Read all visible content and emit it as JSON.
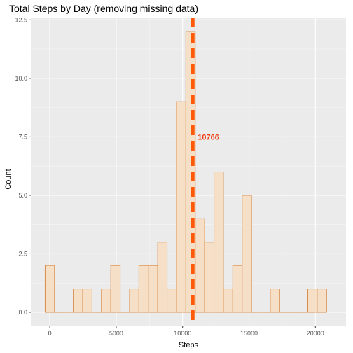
{
  "chart_data": {
    "type": "bar",
    "title": "Total Steps by Day (removing missing data)",
    "xlabel": "Steps",
    "ylabel": "Count",
    "bin_width": 706.5,
    "bins": [
      {
        "start": -353.25,
        "end": 353.25,
        "count": 2
      },
      {
        "start": 353.25,
        "end": 1059.75,
        "count": 0
      },
      {
        "start": 1059.75,
        "end": 1766.25,
        "count": 0
      },
      {
        "start": 1766.25,
        "end": 2472.75,
        "count": 1
      },
      {
        "start": 2472.75,
        "end": 3179.25,
        "count": 1
      },
      {
        "start": 3179.25,
        "end": 3885.75,
        "count": 0
      },
      {
        "start": 3885.75,
        "end": 4592.25,
        "count": 1
      },
      {
        "start": 4592.25,
        "end": 5298.75,
        "count": 2
      },
      {
        "start": 5298.75,
        "end": 6005.25,
        "count": 0
      },
      {
        "start": 6005.25,
        "end": 6711.75,
        "count": 1
      },
      {
        "start": 6711.75,
        "end": 7418.25,
        "count": 2
      },
      {
        "start": 7418.25,
        "end": 8124.75,
        "count": 2
      },
      {
        "start": 8124.75,
        "end": 8831.25,
        "count": 3
      },
      {
        "start": 8831.25,
        "end": 9537.75,
        "count": 1
      },
      {
        "start": 9537.75,
        "end": 10244.25,
        "count": 9
      },
      {
        "start": 10244.25,
        "end": 10950.75,
        "count": 12
      },
      {
        "start": 10950.75,
        "end": 11657.25,
        "count": 4
      },
      {
        "start": 11657.25,
        "end": 12363.75,
        "count": 3
      },
      {
        "start": 12363.75,
        "end": 13070.25,
        "count": 6
      },
      {
        "start": 13070.25,
        "end": 13776.75,
        "count": 1
      },
      {
        "start": 13776.75,
        "end": 14483.25,
        "count": 2
      },
      {
        "start": 14483.25,
        "end": 15189.75,
        "count": 5
      },
      {
        "start": 15189.75,
        "end": 15896.25,
        "count": 0
      },
      {
        "start": 15896.25,
        "end": 16602.75,
        "count": 0
      },
      {
        "start": 16602.75,
        "end": 17309.25,
        "count": 1
      },
      {
        "start": 17309.25,
        "end": 18015.75,
        "count": 0
      },
      {
        "start": 18015.75,
        "end": 18722.25,
        "count": 0
      },
      {
        "start": 18722.25,
        "end": 19428.75,
        "count": 0
      },
      {
        "start": 19428.75,
        "end": 20135.25,
        "count": 1
      },
      {
        "start": 20135.25,
        "end": 20841.75,
        "count": 1
      }
    ],
    "xlim": [
      -1431,
      22305
    ],
    "ylim": [
      -0.6,
      12.6
    ],
    "x_ticks": [
      0,
      5000,
      10000,
      15000,
      20000
    ],
    "y_ticks": [
      0.0,
      2.5,
      5.0,
      7.5,
      10.0,
      12.5
    ],
    "x_tick_labels": [
      "0",
      "5000",
      "10000",
      "15000",
      "20000"
    ],
    "y_tick_labels": [
      "0.0",
      "2.5",
      "5.0",
      "7.5",
      "10.0",
      "12.5"
    ],
    "mean_line": {
      "value": 10766,
      "label": "10766"
    },
    "grid": true,
    "colors": {
      "bar_fill": "#f5dfc6",
      "bar_outline": "#d98c4a",
      "mean_line": "#ff5a0a",
      "annotation": "#ee3b0f",
      "panel_bg": "#ebebeb",
      "grid_major": "#ffffff",
      "grid_minor": "#f5f5f5"
    }
  }
}
